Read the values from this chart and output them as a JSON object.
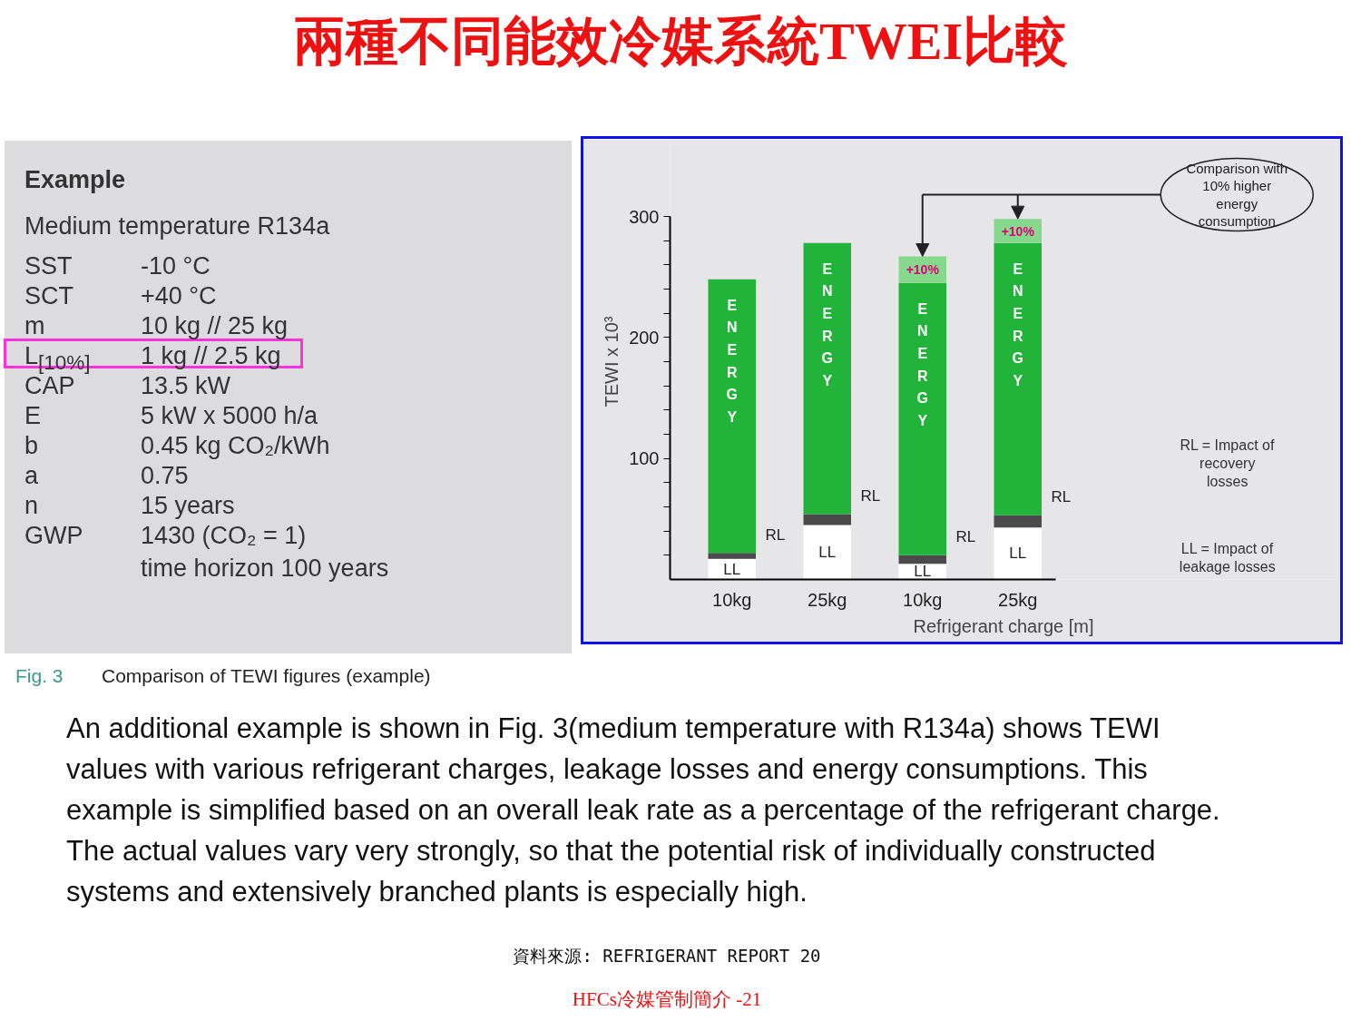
{
  "chart_data": [
    {
      "type": "other",
      "title": "Example",
      "subtitle": "Medium temperature R134a",
      "annotations": [
        "SST",
        "-10 °C",
        "SCT",
        "+40 °C",
        "m",
        "10 kg // 25 kg",
        "L$_{[10%]}$",
        "1 kg // 2.5 kg",
        "CAP",
        "13.5 kW",
        "E",
        "5 kW x 5000 h/a",
        "b",
        "0.45 kg CO₂/kWh",
        "a",
        "0.75",
        "n",
        "15 years",
        "GWP",
        "1430 (CO₂ = 1)",
        "time horizon 100 years"
      ]
    },
    {
      "type": "bar",
      "title": "兩種不同能效冷媒系統TWEI比較",
      "xlabel": "Refrigerant charge [m]",
      "ylabel": "TEWI x 10³",
      "categories": [
        "10kg",
        "25kg",
        "10kg",
        "25kg"
      ],
      "stacked": true,
      "series": [
        {
          "name": "LL",
          "color": "#ffffff",
          "values": [
            17,
            45,
            13,
            43
          ]
        },
        {
          "name": "RL",
          "color": "#4a4a4a",
          "values": [
            5,
            9,
            7,
            10
          ]
        },
        {
          "name": "ENERGY",
          "color": "#22b33a",
          "values": [
            226,
            224,
            225,
            225
          ]
        },
        {
          "name": "+10%",
          "color": "#86d98c",
          "values": [
            null,
            null,
            22,
            20
          ]
        }
      ],
      "ylim": [
        0,
        300
      ],
      "yticks": [
        {
          "value": 20,
          "label": null
        },
        {
          "value": 40,
          "label": null
        },
        {
          "value": 60,
          "label": null
        },
        {
          "value": 80,
          "label": null
        },
        100,
        {
          "value": 120,
          "label": null
        },
        {
          "value": 140,
          "label": null
        },
        {
          "value": 160,
          "label": null
        },
        {
          "value": 180,
          "label": null
        },
        200,
        {
          "value": 220,
          "label": null
        },
        {
          "value": 240,
          "label": null
        },
        {
          "value": 260,
          "label": null
        },
        {
          "value": 280,
          "label": null
        },
        300
      ],
      "annotations": [
        "Fig. 3",
        "Comparison of TEWI figures (example)",
        "Comparison with 10% higher energy consumption",
        "RL = Impact of recovery losses",
        "LL = Impact of leakage losses",
        "An additional example is shown in Fig. 3(medium temperature with R134a) shows TEWI values with various refrigerant charges, leakage losses and energy  consumptions. This example is simplified based on an overall leak rate as a percentage of the refrigerant charge. The actual values vary very strongly, so that the potential risk of individually constructed systems and extensively branched plants is especially high.",
        "資料來源: REFRIGERANT REPORT 20",
        "HFCs冷媒管制簡介 -21"
      ]
    }
  ]
}
